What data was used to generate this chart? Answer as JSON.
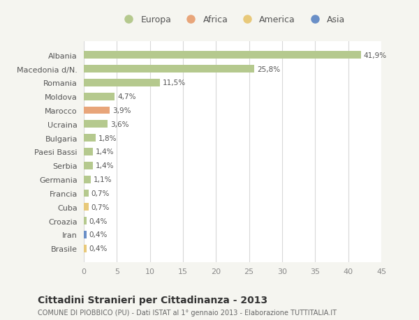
{
  "categories": [
    "Brasile",
    "Iran",
    "Croazia",
    "Cuba",
    "Francia",
    "Germania",
    "Serbia",
    "Paesi Bassi",
    "Bulgaria",
    "Ucraina",
    "Marocco",
    "Moldova",
    "Romania",
    "Macedonia d/N.",
    "Albania"
  ],
  "values": [
    0.4,
    0.4,
    0.4,
    0.7,
    0.7,
    1.1,
    1.4,
    1.4,
    1.8,
    3.6,
    3.9,
    4.7,
    11.5,
    25.8,
    41.9
  ],
  "colors": [
    "#e8c97a",
    "#6a8fc7",
    "#b5c98e",
    "#e8c97a",
    "#b5c98e",
    "#b5c98e",
    "#b5c98e",
    "#b5c98e",
    "#b5c98e",
    "#b5c98e",
    "#e8a57a",
    "#b5c98e",
    "#b5c98e",
    "#b5c98e",
    "#b5c98e"
  ],
  "labels": [
    "0,4%",
    "0,4%",
    "0,4%",
    "0,7%",
    "0,7%",
    "1,1%",
    "1,4%",
    "1,4%",
    "1,8%",
    "3,6%",
    "3,9%",
    "4,7%",
    "11,5%",
    "25,8%",
    "41,9%"
  ],
  "legend": [
    {
      "label": "Europa",
      "color": "#b5c98e"
    },
    {
      "label": "Africa",
      "color": "#e8a57a"
    },
    {
      "label": "America",
      "color": "#e8c97a"
    },
    {
      "label": "Asia",
      "color": "#6a8fc7"
    }
  ],
  "title": "Cittadini Stranieri per Cittadinanza - 2013",
  "subtitle": "COMUNE DI PIOBBICO (PU) - Dati ISTAT al 1° gennaio 2013 - Elaborazione TUTTITALIA.IT",
  "xlim": [
    0,
    45
  ],
  "xticks": [
    0,
    5,
    10,
    15,
    20,
    25,
    30,
    35,
    40,
    45
  ],
  "background_color": "#f5f5f0",
  "bar_background": "#ffffff",
  "grid_color": "#d8d8d8"
}
